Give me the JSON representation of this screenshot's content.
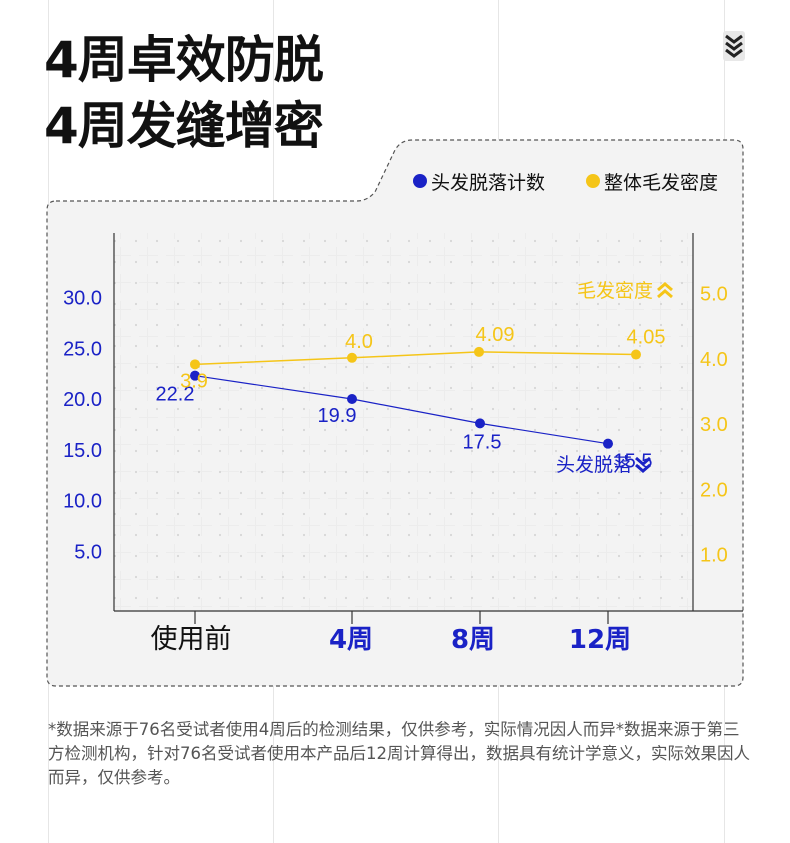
{
  "title": {
    "line1": "4周卓效防脱",
    "line2": "4周发缝增密"
  },
  "legend": {
    "hair_loss": "头发脱落计数",
    "density": "整体毛发密度"
  },
  "colors": {
    "hair_loss": "#1a22c6",
    "density": "#f5c518",
    "title": "#111111"
  },
  "icons": {
    "corner": "triple-chevron-down-icon"
  },
  "chart_data": {
    "type": "line",
    "categories": [
      "使用前",
      "4周",
      "8周",
      "12周"
    ],
    "series": [
      {
        "name": "头发脱落计数",
        "axis": "left",
        "values": [
          22.2,
          19.9,
          17.5,
          15.5
        ],
        "labels": [
          "22.2",
          "19.9",
          "17.5",
          "15.5"
        ],
        "color": "#1a22c6"
      },
      {
        "name": "整体毛发密度",
        "axis": "right",
        "values": [
          3.9,
          4.0,
          4.09,
          4.05
        ],
        "labels": [
          "3.9",
          "4.0",
          "4.09",
          "4.05"
        ],
        "color": "#f5c518"
      }
    ],
    "y_left": {
      "ticks": [
        "5.0",
        "10.0",
        "15.0",
        "20.0",
        "25.0",
        "30.0"
      ]
    },
    "y_right": {
      "ticks": [
        "1.0",
        "2.0",
        "3.0",
        "4.0",
        "5.0"
      ]
    },
    "annotations": {
      "density": "毛发密度",
      "hair_loss": "头发脱落"
    },
    "grid": true
  },
  "footnote": "*数据来源于76名受试者使用4周后的检测结果，仅供参考，实际情况因人而异*数据来源于第三方检测机构，针对76名受试者使用本产品后12周计算得出，数据具有统计学意义，实际效果因人而异，仅供参考。"
}
